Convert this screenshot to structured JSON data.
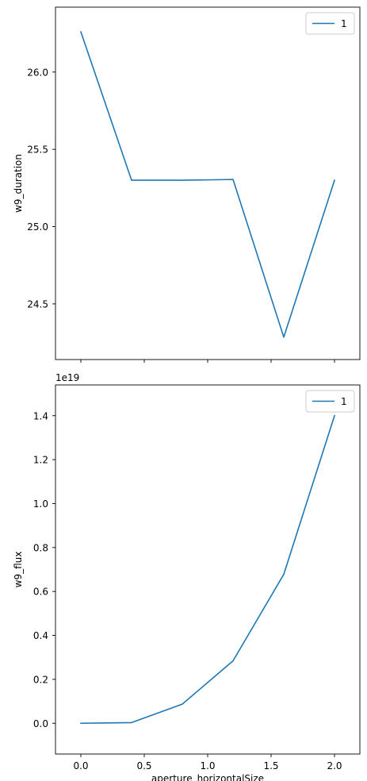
{
  "chart_data": [
    {
      "type": "line",
      "title": "",
      "xlabel": "",
      "ylabel": "w9_duration",
      "x": [
        0.0,
        0.4,
        0.8,
        1.2,
        1.6,
        2.0
      ],
      "series": [
        {
          "name": "1",
          "values": [
            26.26,
            25.3,
            25.3,
            25.305,
            24.285,
            25.3
          ]
        }
      ],
      "xlim": [
        -0.2,
        2.2
      ],
      "ylim": [
        24.14,
        26.42
      ],
      "xticks": [
        0.0,
        0.5,
        1.0,
        1.5,
        2.0
      ],
      "yticks": [
        24.5,
        25.0,
        25.5,
        26.0
      ],
      "ytick_labels": [
        "24.5",
        "25.0",
        "25.5",
        "26.0"
      ],
      "show_xtick_labels": false,
      "legend": "top-right",
      "grid": false,
      "color": "#1f77b4"
    },
    {
      "type": "line",
      "title": "",
      "xlabel": "aperture_horizontalSize",
      "ylabel": "w9_flux",
      "offset_text": "1e19",
      "x": [
        0.0,
        0.4,
        0.8,
        1.2,
        1.6,
        2.0
      ],
      "series": [
        {
          "name": "1",
          "values": [
            0.0,
            0.003,
            0.087,
            0.284,
            0.678,
            1.4
          ]
        }
      ],
      "xlim": [
        -0.2,
        2.2
      ],
      "ylim": [
        -0.14,
        1.54
      ],
      "xticks": [
        0.0,
        0.5,
        1.0,
        1.5,
        2.0
      ],
      "xtick_labels": [
        "0.0",
        "0.5",
        "1.0",
        "1.5",
        "2.0"
      ],
      "yticks": [
        0.0,
        0.2,
        0.4,
        0.6,
        0.8,
        1.0,
        1.2,
        1.4
      ],
      "ytick_labels": [
        "0.0",
        "0.2",
        "0.4",
        "0.6",
        "0.8",
        "1.0",
        "1.2",
        "1.4"
      ],
      "show_xtick_labels": true,
      "legend": "top-right",
      "grid": false,
      "color": "#1f77b4"
    }
  ]
}
